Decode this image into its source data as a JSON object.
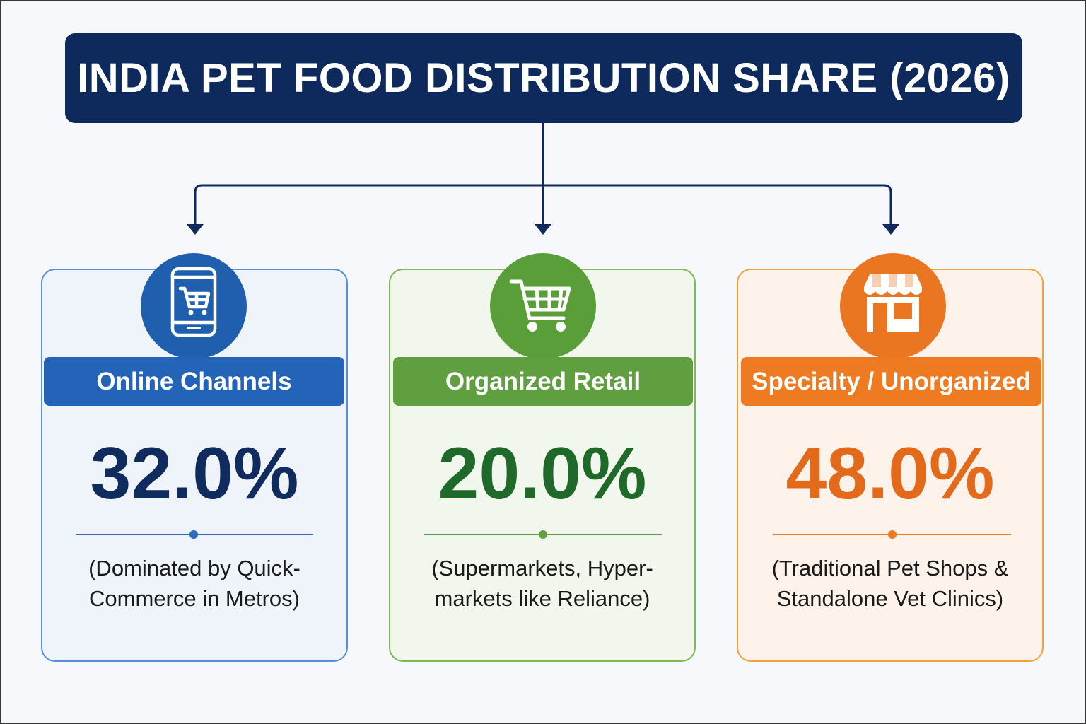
{
  "title": "INDIA PET FOOD DISTRIBUTION SHARE (2026)",
  "colors": {
    "navy": "#0e2a5c",
    "blue": "#2464b8",
    "green": "#5f9f3f",
    "orange": "#ee7b22"
  },
  "channels": [
    {
      "icon": "mobile-shopping-cart-icon",
      "label": "Online Channels",
      "share": "32.0%",
      "desc_line1": "(Dominated by Quick-",
      "desc_line2": "Commerce in Metros)"
    },
    {
      "icon": "shopping-cart-icon",
      "label": "Organized Retail",
      "share": "20.0%",
      "desc_line1": "(Supermarkets, Hyper-",
      "desc_line2": "markets like Reliance)"
    },
    {
      "icon": "storefront-icon",
      "label": "Specialty / Unorganized",
      "share": "48.0%",
      "desc_line1": "(Traditional Pet Shops &",
      "desc_line2": "Standalone Vet Clinics)"
    }
  ]
}
